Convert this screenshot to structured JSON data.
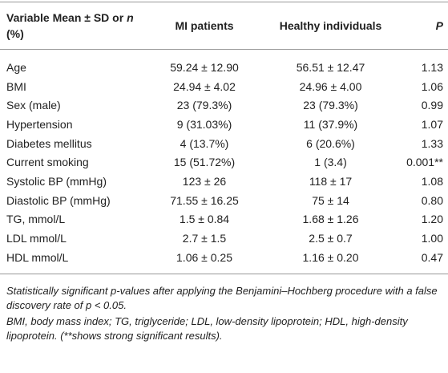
{
  "table": {
    "header": [
      [
        "Variable Mean ± SD or ",
        "n",
        " (%)"
      ],
      "MI patients",
      "Healthy individuals",
      "P"
    ],
    "rows": [
      [
        "Age",
        "59.24 ± 12.90",
        "56.51 ± 12.47",
        "1.13"
      ],
      [
        "BMI",
        "24.94 ± 4.02",
        "24.96 ± 4.00",
        "1.06"
      ],
      [
        "Sex (male)",
        "23 (79.3%)",
        "23 (79.3%)",
        "0.99"
      ],
      [
        "Hypertension",
        "9 (31.03%)",
        "11 (37.9%)",
        "1.07"
      ],
      [
        "Diabetes mellitus",
        "4 (13.7%)",
        "6 (20.6%)",
        "1.33"
      ],
      [
        "Current smoking",
        "15 (51.72%)",
        "1 (3.4)",
        "0.001**"
      ],
      [
        "Systolic BP (mmHg)",
        "123 ± 26",
        "118 ± 17",
        "1.08"
      ],
      [
        "Diastolic BP (mmHg)",
        "71.55 ± 16.25",
        "75 ± 14",
        "0.80"
      ],
      [
        "TG, mmol/L",
        "1.5 ± 0.84",
        "1.68 ± 1.26",
        "1.20"
      ],
      [
        "LDL mmol/L",
        "2.7 ± 1.5",
        "2.5 ± 0.7",
        "1.00"
      ],
      [
        "HDL mmol/L",
        "1.06 ± 0.25",
        "1.16 ± 0.20",
        "0.47"
      ]
    ],
    "footnotes": [
      "Statistically significant p-values after applying the Benjamini–Hochberg procedure with a false discovery rate of p < 0.05.",
      "BMI, body mass index; TG, triglyceride; LDL, low-density lipoprotein; HDL, high-density lipoprotein. (**shows strong significant results)."
    ]
  }
}
